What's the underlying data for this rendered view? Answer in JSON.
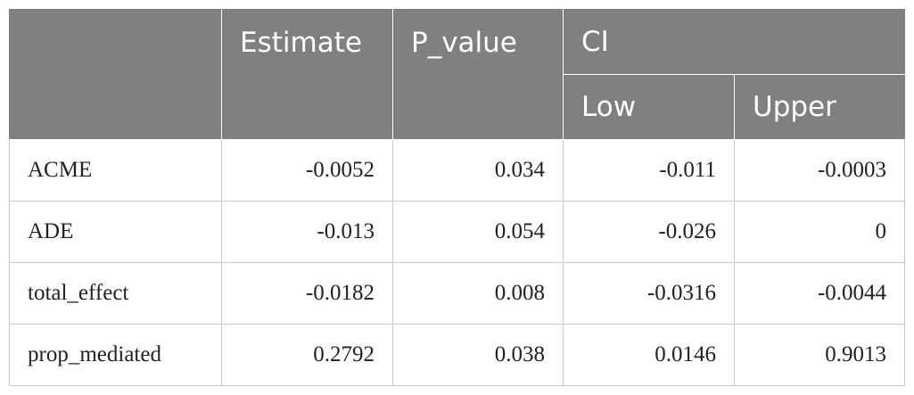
{
  "table": {
    "headers": {
      "stub": "",
      "estimate": "Estimate",
      "p_value": "P_value",
      "ci": "CI",
      "low": "Low",
      "upper": "Upper"
    },
    "rows": [
      {
        "label": "ACME",
        "estimate": "-0.0052",
        "p_value": "0.034",
        "low": "-0.011",
        "upper": "-0.0003"
      },
      {
        "label": "ADE",
        "estimate": "-0.013",
        "p_value": "0.054",
        "low": "-0.026",
        "upper": "0"
      },
      {
        "label": "total_effect",
        "estimate": "-0.0182",
        "p_value": "0.008",
        "low": "-0.0316",
        "upper": "-0.0044"
      },
      {
        "label": "prop_mediated",
        "estimate": "0.2792",
        "p_value": "0.038",
        "low": "0.0146",
        "upper": "0.9013"
      }
    ]
  },
  "colors": {
    "header_bg": "#808080",
    "header_text": "#ffffff",
    "grid_line": "#c8c8c8"
  }
}
